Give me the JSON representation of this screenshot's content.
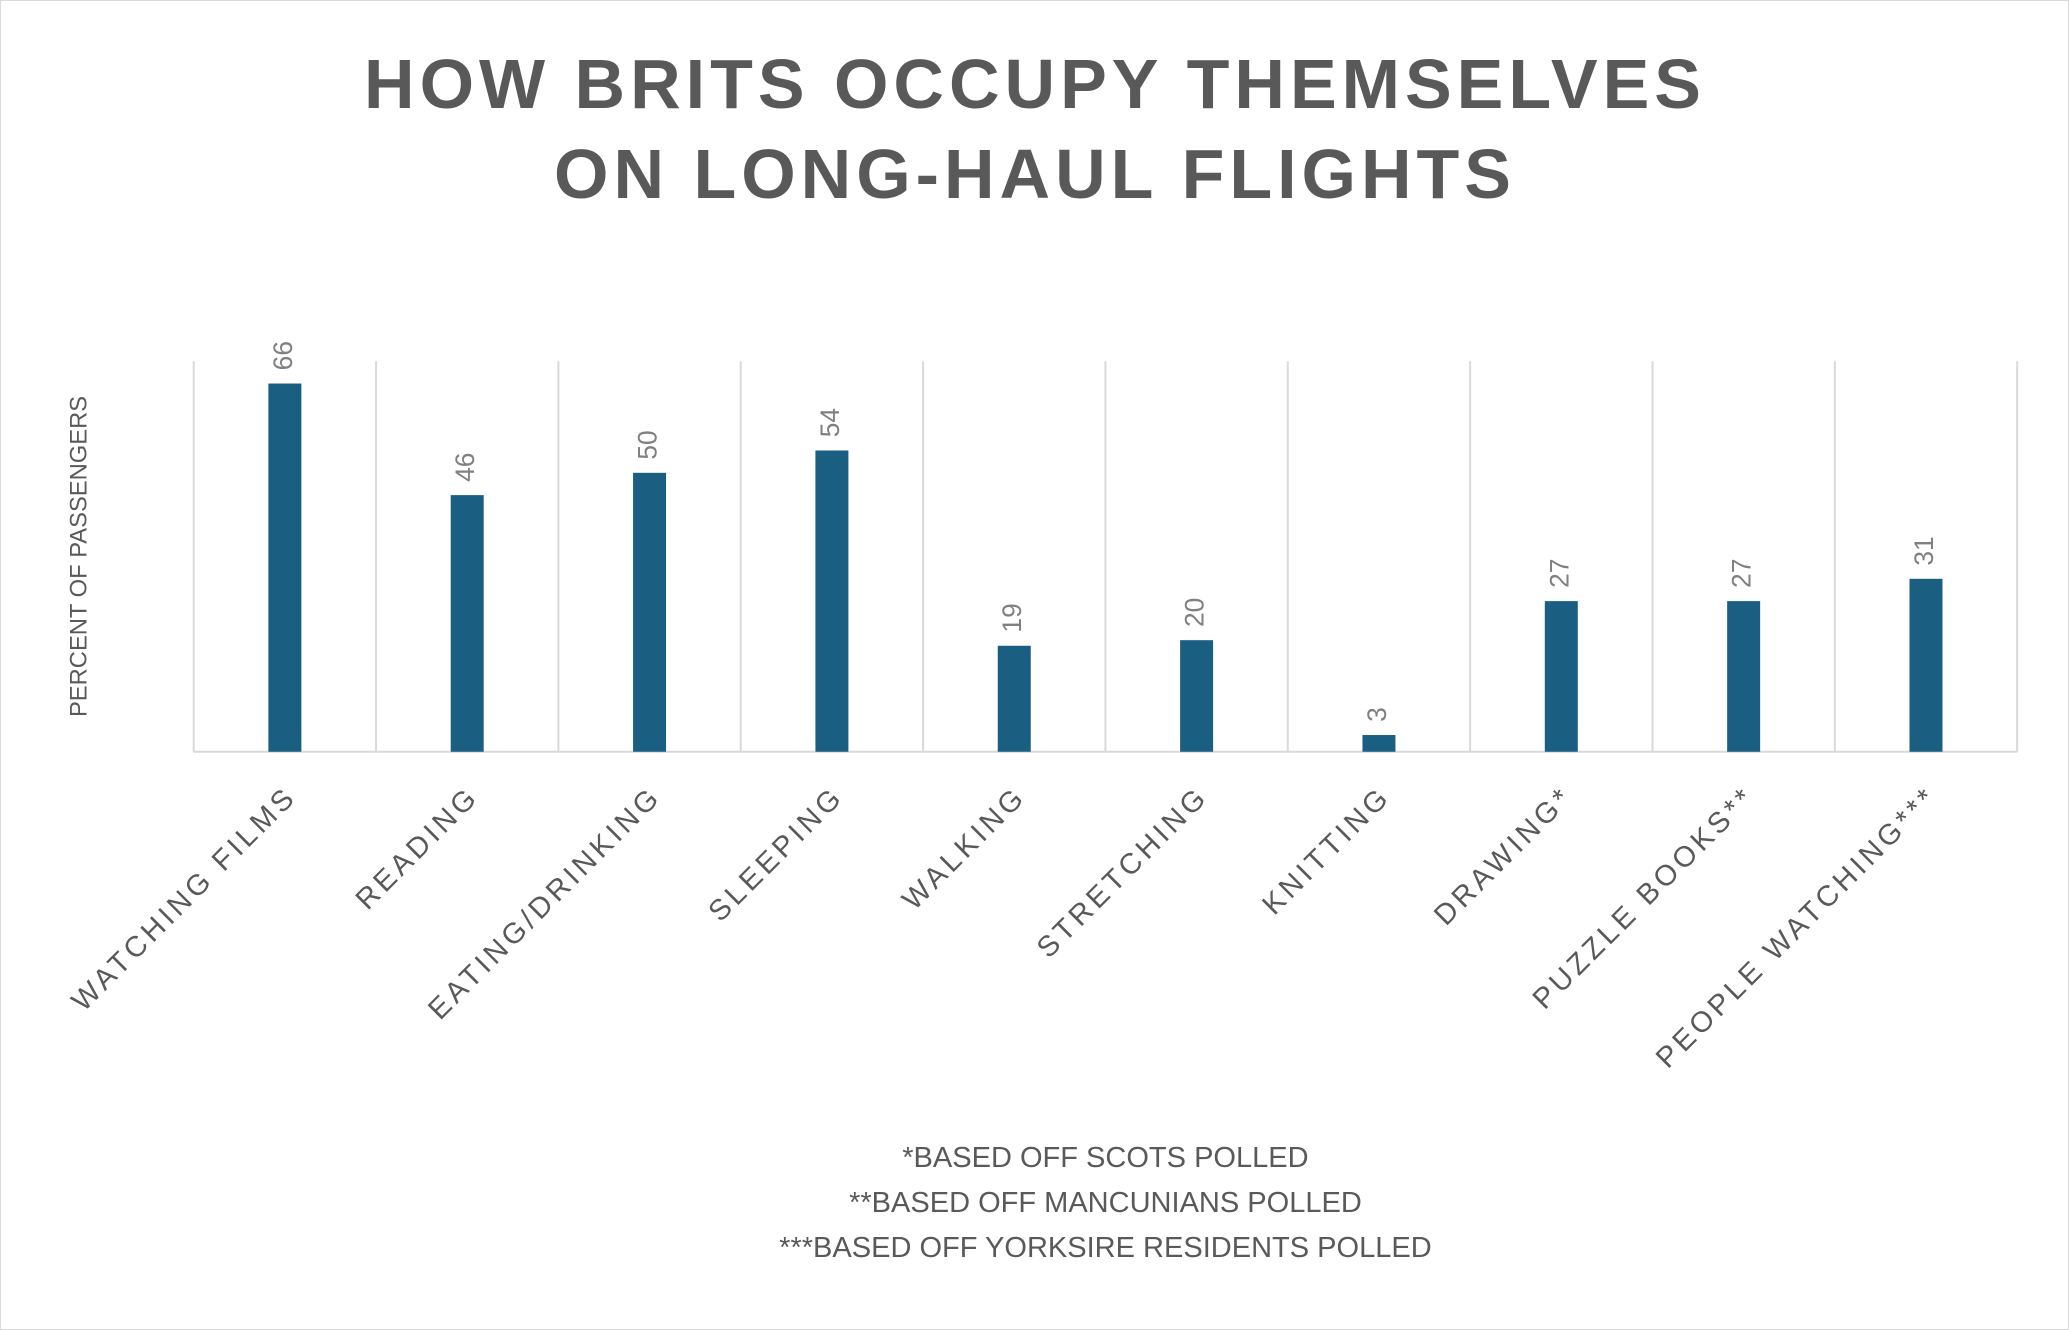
{
  "chart_data": {
    "type": "bar",
    "title": "HOW BRITS OCCUPY THEMSELVES ON LONG-HAUL FLIGHTS",
    "y_label": "PERCENT OF PASSENGERS",
    "categories": [
      "WATCHING FILMS",
      "READING",
      "EATING/DRINKING",
      "SLEEPING",
      "WALKING",
      "STRETCHING",
      "KNITTING",
      "DRAWING*",
      "PUZZLE BOOKS**",
      "PEOPLE WATCHING***"
    ],
    "values": [
      66,
      46,
      50,
      54,
      19,
      20,
      3,
      27,
      27,
      31
    ],
    "color": "#1a5e82",
    "ylim": [
      0,
      70
    ],
    "grid": true,
    "notes": [
      "*BASED OFF SCOTS POLLED",
      "**BASED OFF MANCUNIANS POLLED",
      "***BASED OFF YORKSIRE RESIDENTS POLLED"
    ]
  }
}
